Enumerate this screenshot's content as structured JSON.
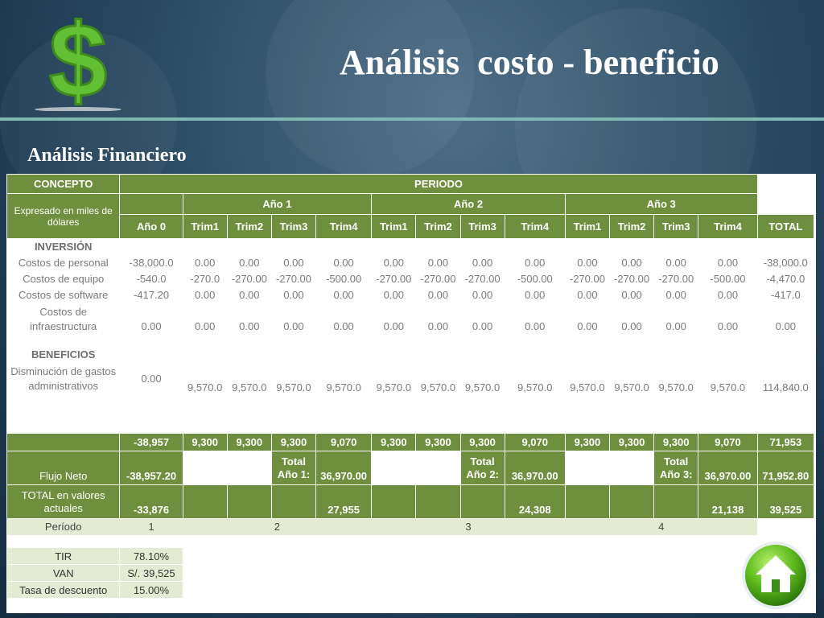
{
  "slide": {
    "title": "Análisis  costo - beneficio",
    "subtitle": "Análisis Financiero",
    "icons": [
      "dollar-icon",
      "home-icon"
    ],
    "colors": {
      "table_green": "#6e8f3d",
      "light_green": "#e3ecd2",
      "rule": "#7fb7b3"
    }
  },
  "table": {
    "concepto": "CONCEPTO",
    "expresado": "Expresado en miles de dólares",
    "periodo": "PERIODO",
    "anio0": "Año 0",
    "years": [
      "Año 1",
      "Año 2",
      "Año 3"
    ],
    "trims": [
      "Trim1",
      "Trim2",
      "Trim3",
      "Trim4"
    ],
    "total": "TOTAL",
    "inversion": "INVERSIÓN",
    "beneficios": "BENEFICIOS",
    "rows": [
      {
        "label": "Costos de personal",
        "values": [
          "-38,000.0",
          "0.00",
          "0.00",
          "0.00",
          "0.00",
          "0.00",
          "0.00",
          "0.00",
          "0.00",
          "0.00",
          "0.00",
          "0.00",
          "0.00",
          "-38,000.0"
        ]
      },
      {
        "label": "Costos de equipo",
        "values": [
          "-540.0",
          "-270.0",
          "-270.00",
          "-270.00",
          "-500.00",
          "-270.00",
          "-270.00",
          "-270.00",
          "-500.00",
          "-270.00",
          "-270.00",
          "-270.00",
          "-500.00",
          "-4,470.0"
        ]
      },
      {
        "label": "Costos de software",
        "values": [
          "-417.20",
          "0.00",
          "0.00",
          "0.00",
          "0.00",
          "0.00",
          "0.00",
          "0.00",
          "0.00",
          "0.00",
          "0.00",
          "0.00",
          "0.00",
          "-417.0"
        ]
      },
      {
        "label": "Costos de infraestructura",
        "values": [
          "0.00",
          "0.00",
          "0.00",
          "0.00",
          "0.00",
          "0.00",
          "0.00",
          "0.00",
          "0.00",
          "0.00",
          "0.00",
          "0.00",
          "0.00",
          "0.00"
        ]
      }
    ],
    "benefit": {
      "label": "Disminución de gastos administrativos",
      "values": [
        "0.00",
        "9,570.0",
        "9,570.0",
        "9,570.0",
        "9,570.0",
        "9,570.0",
        "9,570.0",
        "9,570.0",
        "9,570.0",
        "9,570.0",
        "9,570.0",
        "9,570.0",
        "9,570.0",
        "114,840.0"
      ]
    },
    "sum_row": [
      "-38,957",
      "9,300",
      "9,300",
      "9,300",
      "9,070",
      "9,300",
      "9,300",
      "9,300",
      "9,070",
      "9,300",
      "9,300",
      "9,300",
      "9,070",
      "71,953"
    ],
    "flujo": {
      "label": "Flujo Neto",
      "anio0": "-38,957.20",
      "total_labels": [
        "Total Año 1:",
        "Total Año 2:",
        "Total Año 3:"
      ],
      "year_totals": [
        "36,970.00",
        "36,970.00",
        "36,970.00"
      ],
      "grand_total": "71,952.80"
    },
    "valores": {
      "label": "TOTAL en valores actuales",
      "anio0": "-33,876",
      "years": [
        "27,955",
        "24,308",
        "21,138"
      ],
      "total": "39,525"
    },
    "periodo_row": {
      "label": "Período",
      "values": [
        "1",
        "2",
        "3",
        "4"
      ]
    }
  },
  "stats": [
    {
      "label": "TIR",
      "value": "78.10%"
    },
    {
      "label": "VAN",
      "value": "S/. 39,525"
    },
    {
      "label": "Tasa de descuento",
      "value": "15.00%"
    }
  ]
}
